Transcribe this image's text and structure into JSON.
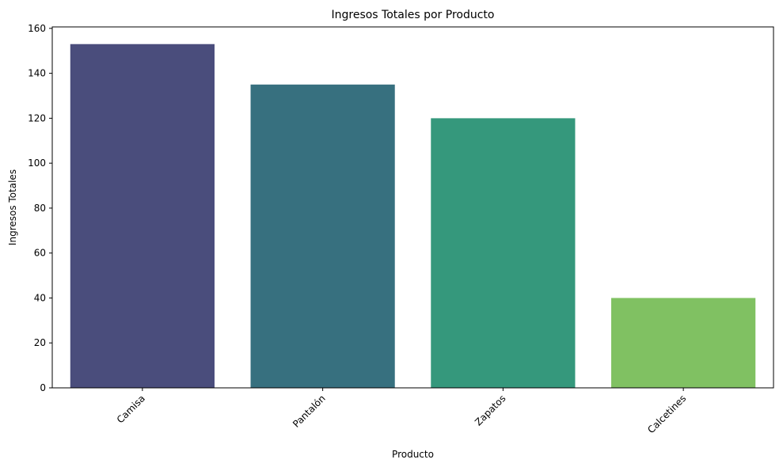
{
  "chart_data": {
    "type": "bar",
    "title": "Ingresos Totales por Producto",
    "xlabel": "Producto",
    "ylabel": "Ingresos Totales",
    "categories": [
      "Camisa",
      "Pantalón",
      "Zapatos",
      "Calcetines"
    ],
    "values": [
      153,
      135,
      120,
      40
    ],
    "colors": [
      "#482878",
      "#2c6e8e",
      "#25a484",
      "#7ac857"
    ],
    "rendered_colors": [
      "#4a4d7c",
      "#37707f",
      "#35987c",
      "#80c162"
    ],
    "ylim": [
      0,
      160.65
    ],
    "yticks": [
      0,
      20,
      40,
      60,
      80,
      100,
      120,
      140,
      160
    ],
    "grid": false,
    "legend": false
  }
}
